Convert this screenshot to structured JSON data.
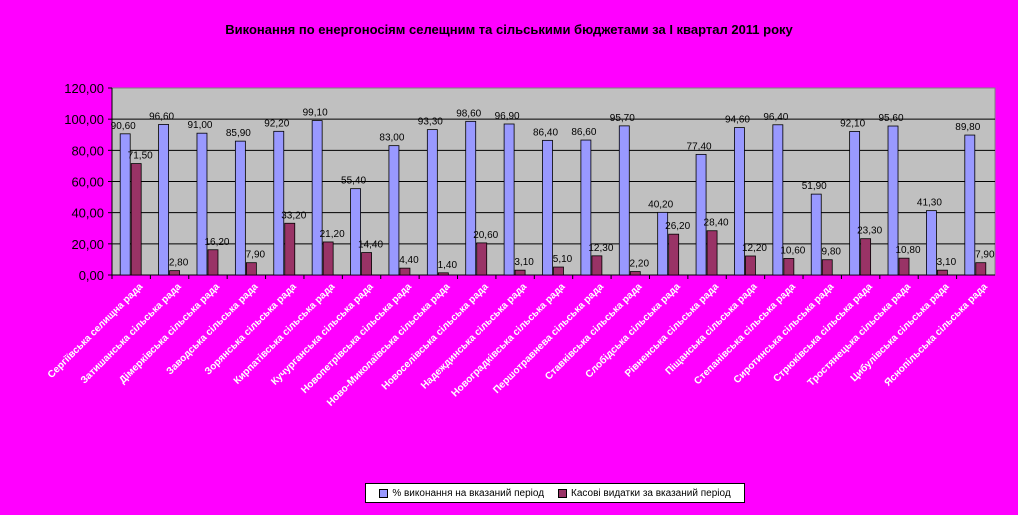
{
  "chart_data": {
    "type": "bar",
    "title": "Виконання по енергоносіям селещним та сільськими бюджетами за І квартал 2011 року",
    "categories": [
      "Сергіївська селищна рада",
      "Затишанська сільська рада",
      "Дімерківська сільська рада",
      "Заводська сільська рада",
      "Зорянська сільська рада",
      "Кирпатівська сільська рада",
      "Кучурганська сільська рада",
      "Новопетрівська сільська рада",
      "Ново-Миколаївська сільська рада",
      "Новоселівська сільська рада",
      "Надеждинська сільська рада",
      "Новоградківська сільська рада",
      "Першотравнева сільська рада",
      "Ставківська сільська рада",
      "Слобідська сільська рада",
      "Рівненська сільська рада",
      "Піщанська сільська рада",
      "Степанівська сільська рада",
      "Сиротинська сільська рада",
      "Стрюківська сільська рада",
      "Тростянецька сільська рада",
      "Цибулівська сільська рада",
      "Яснопільська сільська рада"
    ],
    "series": [
      {
        "name": "% виконання на вказаний період",
        "color": "#9999ff",
        "values": [
          90.6,
          96.6,
          91.0,
          85.9,
          92.2,
          99.1,
          55.4,
          83.0,
          93.3,
          98.6,
          96.9,
          86.4,
          86.6,
          95.7,
          40.2,
          77.4,
          94.6,
          96.4,
          51.9,
          92.1,
          95.6,
          41.3,
          89.8
        ],
        "labels": [
          "90,60",
          "96,60",
          "91,00",
          "85,90",
          "92,20",
          "99,10",
          "55,40",
          "83,00",
          "93,30",
          "98,60",
          "96,90",
          "86,40",
          "86,60",
          "95,70",
          "40,20",
          "77,40",
          "94,60",
          "96,40",
          "51,90",
          "92,10",
          "95,60",
          "41,30",
          "89,80"
        ]
      },
      {
        "name": "Касові видатки за вказаний період",
        "color": "#993366",
        "values": [
          71.5,
          2.8,
          16.2,
          7.9,
          33.2,
          21.2,
          14.4,
          4.4,
          1.4,
          20.6,
          3.1,
          5.1,
          12.3,
          2.2,
          26.2,
          28.4,
          12.2,
          10.6,
          9.8,
          23.3,
          10.8,
          3.1,
          7.9
        ],
        "labels": [
          "71,50",
          "2,80",
          "16,20",
          "7,90",
          "33,20",
          "21,20",
          "14,40",
          "4,40",
          "1,40",
          "20,60",
          "3,10",
          "5,10",
          "12,30",
          "2,20",
          "26,20",
          "28,40",
          "12,20",
          "10,60",
          "9,80",
          "23,30",
          "10,80",
          "3,10",
          "7,90"
        ]
      }
    ],
    "yticks": [
      "0,00",
      "20,00",
      "40,00",
      "60,00",
      "80,00",
      "100,00",
      "120,00"
    ],
    "ylim": [
      0,
      120
    ],
    "grid": true,
    "plot_bg": "#c0c0c0",
    "legend_position": "bottom"
  }
}
